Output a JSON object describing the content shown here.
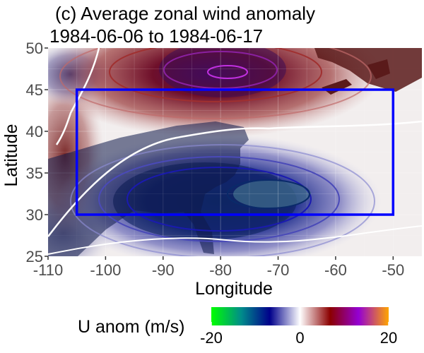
{
  "chart_data": {
    "type": "heatmap",
    "title_line1": "(c) Average zonal wind anomaly",
    "title_line2": "1984-06-06 to 1984-06-17",
    "xlabel": "Longitude",
    "ylabel": "Latitude",
    "xlim": [
      -110,
      -45
    ],
    "ylim": [
      25,
      50
    ],
    "xticks": [
      -110,
      -100,
      -90,
      -80,
      -70,
      -60,
      -50
    ],
    "yticks": [
      25,
      30,
      35,
      40,
      45,
      50
    ],
    "grid": true,
    "highlight_box": {
      "lon": [
        -105,
        -50
      ],
      "lat": [
        30,
        45
      ],
      "color": "#0000ff"
    },
    "anomaly_centers": [
      {
        "lon": -83,
        "lat": 46.5,
        "value": 14,
        "sign": "positive"
      },
      {
        "lon": -75,
        "lat": 34,
        "value": -12,
        "sign": "negative"
      },
      {
        "lon": -107,
        "lat": 37.5,
        "value": 6,
        "sign": "positive"
      },
      {
        "lon": -108,
        "lat": 48,
        "value": -6,
        "sign": "negative"
      }
    ],
    "legend": {
      "title": "U anom (m/s)",
      "ticks": [
        "-20",
        "0",
        "20"
      ],
      "range": [
        -20,
        20
      ],
      "colors": [
        "#00ff00",
        "#008b8b",
        "#00008b",
        "#ffffff",
        "#8b0000",
        "#9400d3",
        "#ffa500"
      ],
      "position": "bottom"
    }
  }
}
